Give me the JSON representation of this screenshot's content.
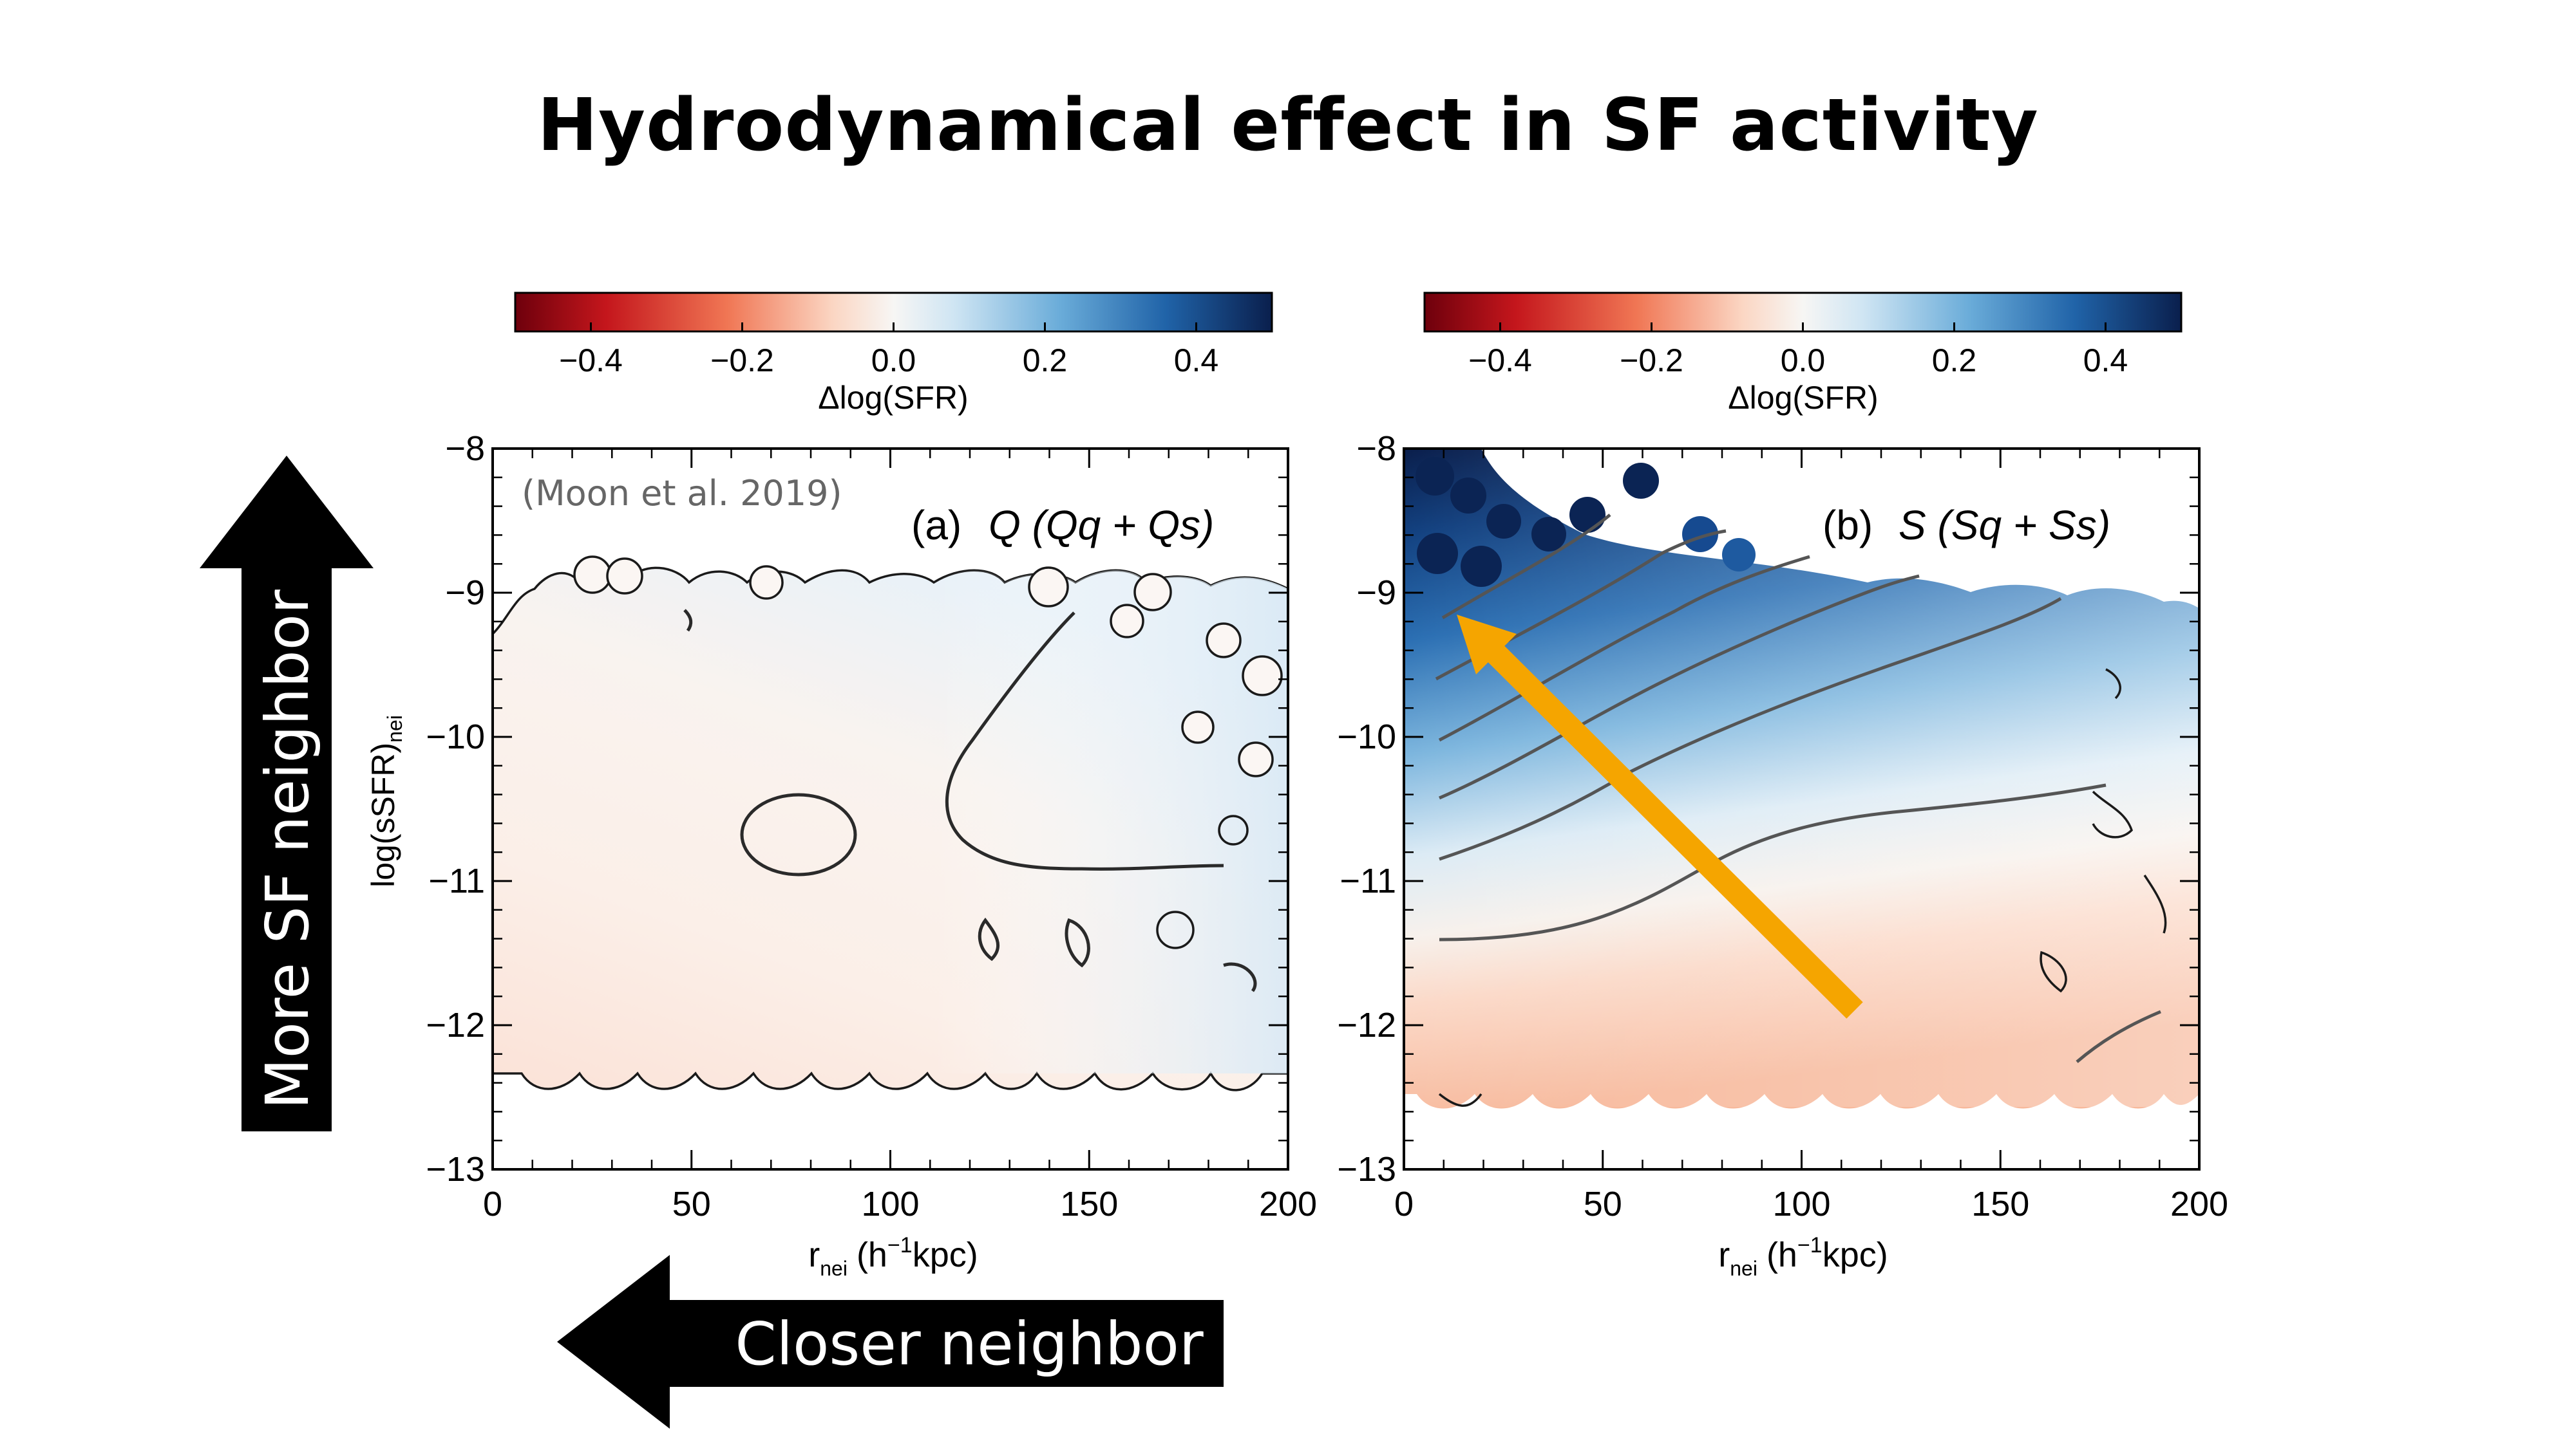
{
  "slide": {
    "title": "Hydrodynamical effect in SF activity",
    "arrow_up_label": "More SF neighbor",
    "arrow_left_label": "Closer neighbor",
    "citation": "(Moon et al. 2019)"
  },
  "colors": {
    "negative": "#7a0010",
    "neutral": "#f7f4f2",
    "positive": "#0a2a5c",
    "highlight_arrow": "#f5a500",
    "contour": "#2a2a2a"
  },
  "chart_data": [
    {
      "type": "heatmap",
      "panel_label": "(a)",
      "title": "Q (Qq + Qs)",
      "xlabel": "r",
      "xlabel_sub": "nei",
      "xlabel_unit": "(h",
      "xlabel_sup": "−1",
      "xlabel_tail": "kpc)",
      "ylabel": "log(sSFR)",
      "ylabel_sub": "nei",
      "xlim": [
        0,
        200
      ],
      "ylim": [
        -13,
        -8
      ],
      "xticks": [
        "0",
        "50",
        "100",
        "150",
        "200"
      ],
      "yticks": [
        "−8",
        "−9",
        "−10",
        "−11",
        "−12",
        "−13"
      ],
      "colorbar": {
        "label": "Δlog(SFR)",
        "range": [
          -0.5,
          0.5
        ],
        "ticks": [
          "−0.4",
          "−0.2",
          "0.0",
          "0.2",
          "0.4"
        ],
        "tick_values": [
          -0.4,
          -0.2,
          0.0,
          0.2,
          0.4
        ]
      },
      "field": "nearly uniform, slightly negative (≈ −0.03) at low sSFR, slightly positive at large r and high sSFR",
      "coverage": {
        "x": [
          0,
          200
        ],
        "y": [
          -12.4,
          -8.9
        ]
      },
      "grid": false
    },
    {
      "type": "heatmap",
      "panel_label": "(b)",
      "title": "S (Sq + Ss)",
      "xlabel": "r",
      "xlabel_sub": "nei",
      "xlabel_unit": "(h",
      "xlabel_sup": "−1",
      "xlabel_tail": "kpc)",
      "ylabel": "",
      "ylabel_sub": "",
      "xlim": [
        0,
        200
      ],
      "ylim": [
        -13,
        -8
      ],
      "xticks": [
        "0",
        "50",
        "100",
        "150",
        "200"
      ],
      "yticks": [
        "−8",
        "−9",
        "−10",
        "−11",
        "−12",
        "−13"
      ],
      "colorbar": {
        "label": "Δlog(SFR)",
        "range": [
          -0.5,
          0.5
        ],
        "ticks": [
          "−0.4",
          "−0.2",
          "0.0",
          "0.2",
          "0.4"
        ],
        "tick_values": [
          -0.4,
          -0.2,
          0.0,
          0.2,
          0.4
        ]
      },
      "field": "strongly positive (≈ +0.5) at small r and high sSFR, decreasing to negative (≈ −0.15) at low sSFR",
      "coverage": {
        "x": [
          0,
          200
        ],
        "y": [
          -12.5,
          -8.0
        ]
      },
      "grid": false
    }
  ]
}
